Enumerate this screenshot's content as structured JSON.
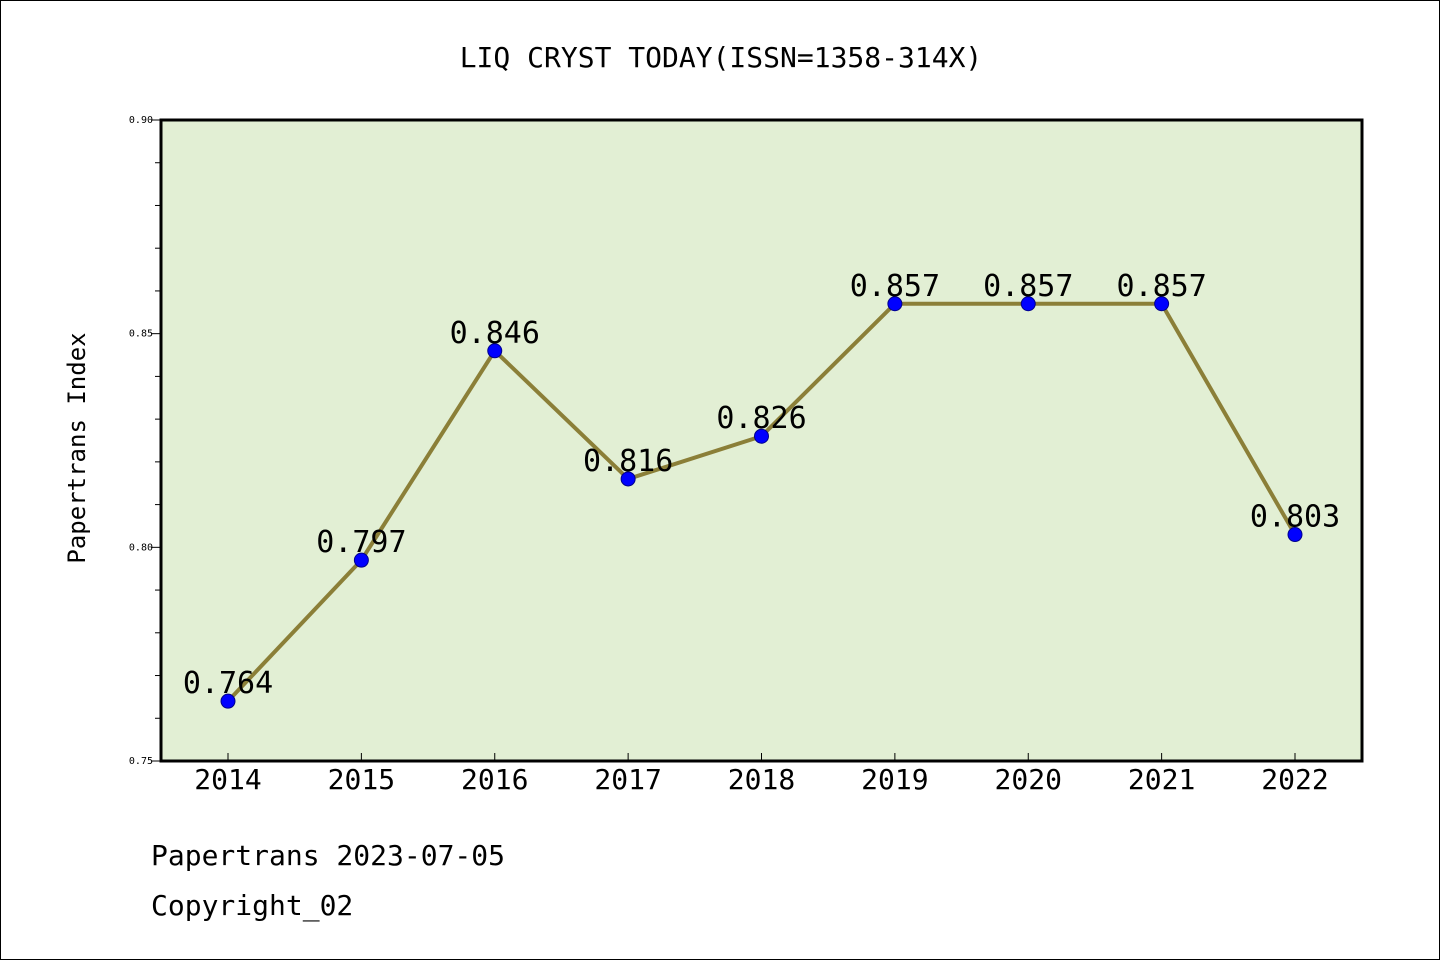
{
  "colors": {
    "plot_background": "#e2efd4",
    "line": "#8b7f38",
    "marker": "#0000ff",
    "marker_edge": "#00008b",
    "axis": "#000000"
  },
  "footer": {
    "source_line": "Papertrans 2023-07-05",
    "copyright_line": "Copyright_02"
  },
  "chart_data": {
    "type": "line",
    "title": "LIQ CRYST TODAY(ISSN=1358-314X)",
    "xlabel": "",
    "ylabel": "Papertrans Index",
    "categories": [
      "2014",
      "2015",
      "2016",
      "2017",
      "2018",
      "2019",
      "2020",
      "2021",
      "2022"
    ],
    "series": [
      {
        "values": [
          0.764,
          0.797,
          0.846,
          0.816,
          0.826,
          0.857,
          0.857,
          0.857,
          0.803
        ]
      }
    ],
    "data_labels": [
      "0.764",
      "0.797",
      "0.846",
      "0.816",
      "0.826",
      "0.857",
      "0.857",
      "0.857",
      "0.803"
    ],
    "ylim": [
      0.75,
      0.9
    ],
    "yticks": [
      "0.75",
      "0.80",
      "0.85",
      "0.90"
    ],
    "grid": false,
    "legend": "none"
  }
}
